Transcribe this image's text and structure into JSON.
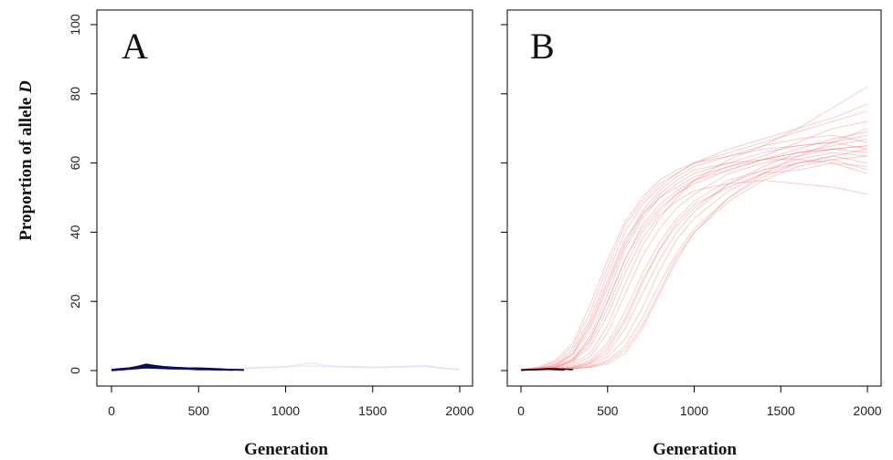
{
  "chart_data": [
    {
      "type": "line",
      "panel_label": "A",
      "xlabel": "Generation",
      "ylabel_prefix": "Proportion of allele ",
      "ylabel_italic": "D",
      "xlim": [
        0,
        2000
      ],
      "ylim": [
        0,
        100
      ],
      "x_ticks": [
        0,
        500,
        1000,
        1500,
        2000
      ],
      "y_ticks": [
        0,
        20,
        40,
        60,
        80,
        100
      ],
      "grid": false,
      "colors": {
        "dark": "#0b0b5e",
        "light": "#b8b8f0"
      },
      "series": [
        {
          "style": "dark",
          "x": [
            0,
            50,
            100,
            150,
            200,
            250,
            300,
            350,
            400,
            450,
            500,
            550,
            600,
            650,
            700,
            760
          ],
          "y": [
            0.2,
            0.4,
            0.6,
            1.0,
            1.5,
            1.2,
            1.0,
            0.9,
            0.8,
            0.7,
            0.7,
            0.6,
            0.5,
            0.4,
            0.3,
            0.2
          ]
        },
        {
          "style": "dark",
          "x": [
            0,
            50,
            100,
            150,
            200,
            250,
            300,
            350,
            400,
            450,
            500,
            550,
            600,
            650,
            700,
            760
          ],
          "y": [
            0.1,
            0.3,
            0.5,
            0.8,
            1.1,
            1.0,
            0.8,
            0.7,
            0.6,
            0.5,
            0.5,
            0.4,
            0.4,
            0.3,
            0.2,
            0.1
          ]
        },
        {
          "style": "dark",
          "x": [
            0,
            50,
            100,
            150,
            200,
            250,
            300,
            350,
            400,
            450,
            500,
            550,
            600,
            650,
            700
          ],
          "y": [
            0.0,
            0.2,
            0.4,
            0.6,
            0.8,
            0.7,
            0.6,
            0.5,
            0.5,
            0.4,
            0.3,
            0.3,
            0.2,
            0.2,
            0.1
          ]
        },
        {
          "style": "dark",
          "x": [
            0,
            50,
            100,
            150,
            200,
            250,
            300,
            350,
            400,
            450,
            500,
            550,
            600
          ],
          "y": [
            0.3,
            0.5,
            0.7,
            1.2,
            1.8,
            1.4,
            1.1,
            0.9,
            0.8,
            0.6,
            0.5,
            0.4,
            0.3
          ]
        },
        {
          "style": "light",
          "x": [
            700,
            800,
            900,
            1000,
            1100,
            1150,
            1200,
            1300,
            1400,
            1500,
            1600,
            1700,
            1800,
            1900,
            2000
          ],
          "y": [
            0.5,
            0.8,
            1.0,
            1.2,
            1.8,
            2.2,
            1.6,
            1.3,
            1.2,
            1.0,
            1.1,
            1.3,
            1.5,
            0.8,
            0.4
          ]
        },
        {
          "style": "light",
          "x": [
            700,
            800,
            900,
            1000,
            1100,
            1200,
            1300,
            1400,
            1500,
            1600,
            1700,
            1800,
            1900,
            2000
          ],
          "y": [
            0.3,
            0.6,
            0.9,
            1.0,
            1.4,
            1.2,
            1.0,
            0.9,
            0.8,
            0.9,
            1.0,
            1.2,
            0.6,
            0.2
          ]
        }
      ]
    },
    {
      "type": "line",
      "panel_label": "B",
      "xlabel": "Generation",
      "xlim": [
        0,
        2000
      ],
      "ylim": [
        0,
        100
      ],
      "x_ticks": [
        0,
        500,
        1000,
        1500,
        2000
      ],
      "y_ticks": [
        0,
        20,
        40,
        60,
        80,
        100
      ],
      "grid": false,
      "colors": {
        "dark": "#3a0000",
        "light": "#f07878"
      },
      "series": [
        {
          "style": "dark",
          "x": [
            0,
            50,
            100,
            150,
            200,
            250,
            300
          ],
          "y": [
            0.2,
            0.3,
            0.4,
            0.5,
            0.5,
            0.4,
            0.3
          ]
        },
        {
          "style": "dark",
          "x": [
            0,
            50,
            100,
            150,
            200,
            250
          ],
          "y": [
            0.1,
            0.2,
            0.3,
            0.4,
            0.3,
            0.2
          ]
        },
        {
          "style": "light",
          "x": [
            0,
            100,
            200,
            300,
            400,
            500,
            600,
            700,
            800,
            900,
            1000,
            1200,
            1400,
            1600,
            1800,
            2000
          ],
          "y": [
            0.2,
            0.5,
            1.5,
            5,
            14,
            26,
            38,
            45,
            50,
            54,
            57,
            60,
            63,
            65,
            66,
            68
          ]
        },
        {
          "style": "light",
          "x": [
            0,
            100,
            200,
            300,
            400,
            500,
            600,
            700,
            800,
            900,
            1000,
            1200,
            1400,
            1600,
            1800,
            2000
          ],
          "y": [
            0.2,
            0.3,
            0.8,
            3,
            9,
            20,
            32,
            41,
            47,
            51,
            54,
            58,
            61,
            63,
            64,
            65
          ]
        },
        {
          "style": "light",
          "x": [
            0,
            100,
            200,
            300,
            400,
            500,
            600,
            700,
            800,
            900,
            1000,
            1200,
            1400,
            1600,
            1800,
            2000
          ],
          "y": [
            0.2,
            0.4,
            0.6,
            1.5,
            4,
            11,
            22,
            33,
            41,
            47,
            51,
            57,
            60,
            62,
            64,
            63
          ]
        },
        {
          "style": "light",
          "x": [
            0,
            100,
            200,
            300,
            400,
            500,
            600,
            700,
            800,
            900,
            1000,
            1200,
            1400,
            1600,
            1800,
            2000
          ],
          "y": [
            0.1,
            0.2,
            0.4,
            0.8,
            2,
            5,
            12,
            22,
            32,
            40,
            46,
            54,
            58,
            61,
            63,
            62
          ]
        },
        {
          "style": "light",
          "x": [
            0,
            100,
            200,
            300,
            400,
            500,
            600,
            700,
            800,
            900,
            1000,
            1200,
            1400,
            1600,
            1800,
            2000
          ],
          "y": [
            0.1,
            0.2,
            0.3,
            0.5,
            1,
            2,
            5,
            12,
            22,
            32,
            40,
            50,
            56,
            60,
            62,
            64
          ]
        },
        {
          "style": "light",
          "x": [
            0,
            100,
            200,
            300,
            400,
            500,
            600,
            700,
            800,
            900,
            1000,
            1200,
            1400,
            1600,
            1800,
            2000
          ],
          "y": [
            0.3,
            0.8,
            2.5,
            7,
            17,
            30,
            42,
            49,
            54,
            57,
            60,
            63,
            66,
            69,
            72,
            75
          ]
        },
        {
          "style": "light",
          "x": [
            0,
            100,
            200,
            300,
            400,
            500,
            600,
            700,
            800,
            900,
            1000,
            1200,
            1400,
            1600,
            1800,
            2000
          ],
          "y": [
            0.2,
            0.6,
            1.8,
            5,
            13,
            25,
            37,
            46,
            52,
            56,
            59,
            62,
            65,
            70,
            76,
            82
          ]
        },
        {
          "style": "light",
          "x": [
            0,
            100,
            200,
            300,
            400,
            500,
            600,
            700,
            800,
            900,
            1000,
            1200,
            1400,
            1600,
            1800,
            2000
          ],
          "y": [
            0.2,
            0.4,
            1.0,
            2.5,
            7,
            16,
            28,
            38,
            45,
            49,
            52,
            54,
            55,
            54,
            53,
            51
          ]
        },
        {
          "style": "light",
          "x": [
            0,
            100,
            200,
            300,
            400,
            500,
            600,
            700,
            800,
            900,
            1000,
            1200,
            1400,
            1600,
            1800,
            2000
          ],
          "y": [
            0.1,
            0.3,
            0.5,
            1.2,
            3,
            8,
            17,
            28,
            37,
            44,
            49,
            55,
            58,
            60,
            61,
            58
          ]
        },
        {
          "style": "light",
          "x": [
            0,
            100,
            200,
            300,
            400,
            500,
            600,
            700,
            800,
            900,
            1000,
            1200,
            1400,
            1600,
            1800,
            2000
          ],
          "y": [
            0.1,
            0.2,
            0.3,
            0.6,
            1.2,
            3,
            7,
            15,
            25,
            34,
            41,
            50,
            57,
            62,
            66,
            70
          ]
        },
        {
          "style": "light",
          "x": [
            0,
            100,
            200,
            300,
            400,
            500,
            600,
            700,
            800,
            900,
            1000,
            1200,
            1400,
            1600,
            1800,
            2000
          ],
          "y": [
            0.2,
            0.5,
            1.2,
            3.5,
            10,
            22,
            35,
            44,
            50,
            53,
            56,
            59,
            61,
            64,
            67,
            69
          ]
        },
        {
          "style": "light",
          "x": [
            0,
            100,
            200,
            300,
            400,
            500,
            600,
            700,
            800,
            900,
            1000,
            1200,
            1400,
            1600,
            1800,
            2000
          ],
          "y": [
            0.2,
            0.3,
            0.7,
            2,
            5,
            13,
            25,
            36,
            44,
            50,
            55,
            61,
            65,
            67,
            68,
            66
          ]
        },
        {
          "style": "light",
          "x": [
            0,
            100,
            200,
            300,
            400,
            500,
            600,
            700,
            800,
            900,
            1000,
            1200,
            1400,
            1600,
            1800,
            2000
          ],
          "y": [
            0.1,
            0.2,
            0.4,
            0.9,
            2.2,
            6,
            14,
            25,
            35,
            43,
            48,
            53,
            57,
            58,
            60,
            57
          ]
        },
        {
          "style": "light",
          "x": [
            0,
            100,
            200,
            300,
            400,
            500,
            600,
            700,
            800,
            900,
            1000,
            1200,
            1400,
            1600,
            1800,
            2000
          ],
          "y": [
            0.3,
            0.7,
            2,
            6,
            15,
            28,
            40,
            48,
            53,
            57,
            60,
            64,
            67,
            70,
            73,
            77
          ]
        },
        {
          "style": "light",
          "x": [
            0,
            100,
            200,
            300,
            400,
            500,
            600,
            700,
            800,
            900,
            1000,
            1200,
            1400,
            1600,
            1800,
            2000
          ],
          "y": [
            0.1,
            0.2,
            0.3,
            0.7,
            1.5,
            4,
            9,
            18,
            29,
            38,
            44,
            52,
            57,
            60,
            62,
            60
          ]
        },
        {
          "style": "light",
          "x": [
            0,
            100,
            200,
            300,
            400,
            500,
            600,
            700,
            800,
            900,
            1000,
            1200,
            1400,
            1600,
            1800,
            2000
          ],
          "y": [
            0.2,
            0.4,
            0.9,
            2.8,
            8,
            18,
            30,
            40,
            46,
            51,
            55,
            59,
            62,
            66,
            70,
            72
          ]
        },
        {
          "style": "light",
          "x": [
            0,
            100,
            200,
            300,
            400,
            500,
            600,
            700,
            800,
            900,
            1000,
            1200,
            1400,
            1600,
            1800,
            2000
          ],
          "y": [
            0.2,
            0.5,
            1.4,
            4.5,
            12,
            24,
            36,
            45,
            51,
            55,
            58,
            60,
            61,
            61,
            60,
            59
          ]
        },
        {
          "style": "light",
          "x": [
            0,
            100,
            200,
            300,
            400,
            500,
            600,
            700,
            800,
            900,
            1000,
            1200,
            1400,
            1600,
            1800,
            2000
          ],
          "y": [
            0.1,
            0.2,
            0.4,
            1,
            2.5,
            7,
            15,
            26,
            35,
            42,
            47,
            54,
            59,
            63,
            65,
            67
          ]
        },
        {
          "style": "light",
          "x": [
            0,
            100,
            200,
            300,
            400,
            500,
            600,
            700,
            800,
            900,
            1000,
            1200,
            1400,
            1600,
            1800,
            2000
          ],
          "y": [
            0.1,
            0.2,
            0.3,
            0.5,
            1,
            2.5,
            6,
            13,
            23,
            33,
            40,
            49,
            55,
            59,
            61,
            62
          ]
        },
        {
          "style": "light",
          "x": [
            0,
            100,
            200,
            300,
            400,
            500,
            600,
            700,
            800,
            900,
            1000,
            1200,
            1400,
            1600,
            1800,
            2000
          ],
          "y": [
            0.3,
            1,
            3,
            8,
            19,
            32,
            43,
            50,
            55,
            58,
            60,
            62,
            64,
            65,
            66,
            64
          ]
        },
        {
          "style": "light",
          "x": [
            0,
            100,
            200,
            300,
            400,
            500,
            600,
            700,
            800,
            900,
            1000,
            1200,
            1400,
            1600,
            1800,
            2000
          ],
          "y": [
            0.2,
            0.4,
            1.1,
            3.2,
            9,
            20,
            32,
            42,
            48,
            52,
            55,
            58,
            61,
            63,
            64,
            65
          ]
        }
      ]
    }
  ]
}
